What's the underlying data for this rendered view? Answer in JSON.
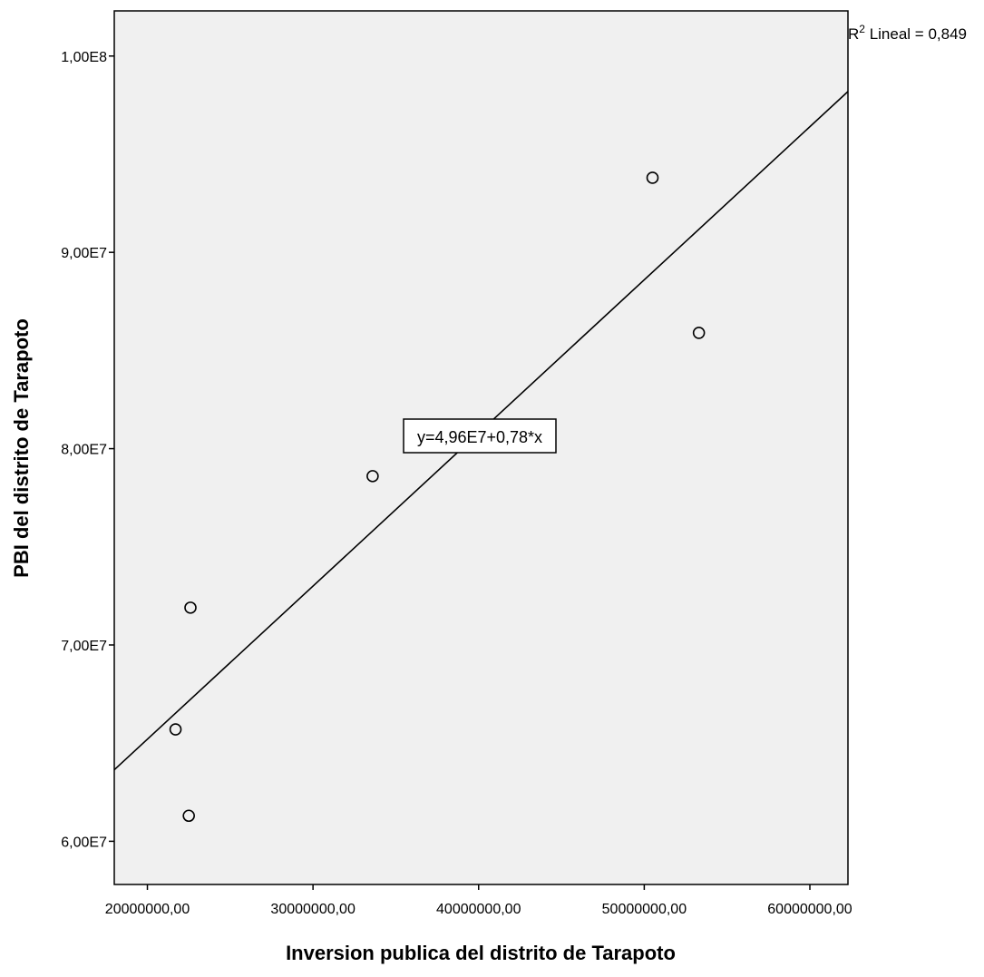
{
  "chart_data": {
    "type": "scatter",
    "title": "",
    "xlabel": "Inversion publica del distrito de Tarapoto",
    "ylabel": "PBI del distrito de Tarapoto",
    "xlim": [
      18000000,
      62300000
    ],
    "ylim": [
      57800000,
      102300000
    ],
    "xticks": [
      20000000,
      30000000,
      40000000,
      50000000,
      60000000
    ],
    "xtick_labels": [
      "20000000,00",
      "30000000,00",
      "40000000,00",
      "50000000,00",
      "60000000,00"
    ],
    "yticks": [
      60000000,
      70000000,
      80000000,
      90000000,
      100000000
    ],
    "ytick_labels": [
      "6,00E7",
      "7,00E7",
      "8,00E7",
      "9,00E7",
      "1,00E8"
    ],
    "points": [
      {
        "x": 21700000,
        "y": 65700000
      },
      {
        "x": 22500000,
        "y": 61300000
      },
      {
        "x": 22600000,
        "y": 71900000
      },
      {
        "x": 33600000,
        "y": 78600000
      },
      {
        "x": 50500000,
        "y": 93800000
      },
      {
        "x": 53300000,
        "y": 85900000
      }
    ],
    "fit_line": {
      "intercept": 49600000,
      "slope": 0.78,
      "x_range": [
        18000000,
        62300000
      ]
    },
    "annotations": {
      "fit_equation": "y=4,96E7+0,78*x",
      "r2_prefix": "R",
      "r2_sup": "2",
      "r2_text": " Lineal = 0,849"
    },
    "background_color": "#f0f0f0",
    "marker_color": "#000000",
    "line_color": "#000000",
    "grid": false
  }
}
